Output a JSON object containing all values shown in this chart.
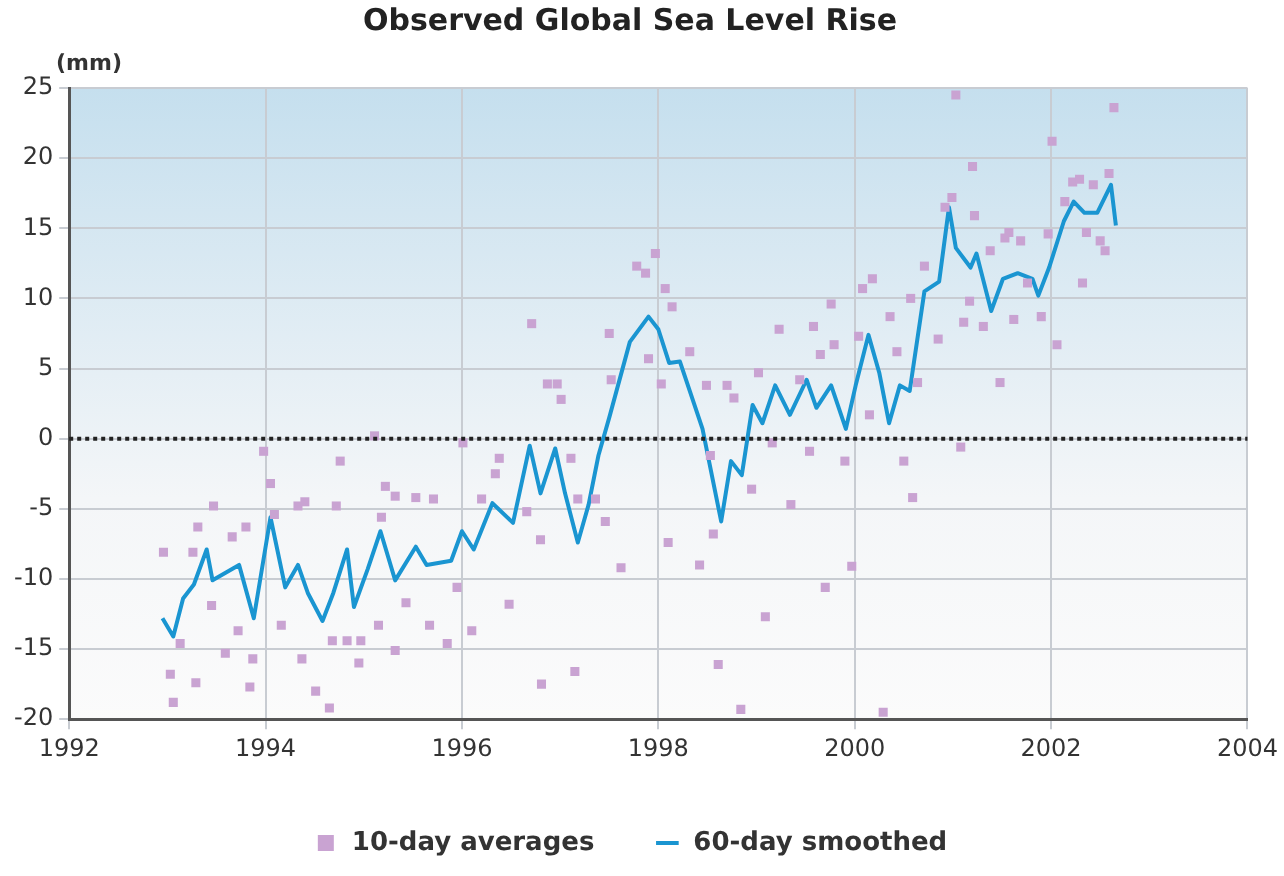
{
  "chart_data": {
    "type": "scatter",
    "title": "Observed Global Sea Level Rise",
    "ylabel": "(mm)",
    "xlim": [
      1992,
      2004
    ],
    "xticks": [
      1992,
      1994,
      1996,
      1998,
      2000,
      2002,
      2004
    ],
    "ylim": [
      -20,
      25
    ],
    "yticks": [
      -20,
      -15,
      -10,
      -5,
      0,
      5,
      10,
      15,
      20,
      25
    ],
    "grid": true,
    "legend": "bottom",
    "ref_lines": [
      {
        "axis": "y",
        "value": 0,
        "color": "#222222",
        "line_style": "dotted"
      }
    ],
    "series": [
      {
        "name": "10-day averages",
        "marker": "square",
        "color": "#c9a3d2",
        "x": [
          1992.96,
          1993.03,
          1993.06,
          1993.13,
          1993.29,
          1993.31,
          1993.26,
          1993.47,
          1993.45,
          1993.59,
          1993.66,
          1993.72,
          1993.8,
          1993.84,
          1993.87,
          1993.98,
          1994.05,
          1994.09,
          1994.16,
          1994.37,
          1994.33,
          1994.4,
          1994.51,
          1994.65,
          1994.76,
          1994.72,
          1994.68,
          1994.83,
          1994.95,
          1994.97,
          1995.11,
          1995.22,
          1995.32,
          1995.18,
          1995.15,
          1995.32,
          1995.43,
          1995.53,
          1995.67,
          1995.71,
          1995.85,
          1995.95,
          1996.01,
          1996.1,
          1996.2,
          1996.34,
          1996.38,
          1996.48,
          1996.66,
          1996.71,
          1996.8,
          1996.81,
          1996.87,
          1996.97,
          1997.01,
          1997.11,
          1997.15,
          1997.18,
          1997.36,
          1997.46,
          1997.5,
          1997.62,
          1997.52,
          1997.78,
          1997.87,
          1997.97,
          1997.9,
          1998.03,
          1998.07,
          1998.14,
          1998.32,
          1998.49,
          1998.53,
          1998.1,
          1998.42,
          1998.56,
          1998.61,
          1998.7,
          1998.77,
          1998.84,
          1998.95,
          1999.02,
          1999.09,
          1999.16,
          1999.23,
          1999.35,
          1999.44,
          1999.54,
          1999.58,
          1999.65,
          1999.7,
          1999.76,
          1999.79,
          1999.9,
          1999.97,
          2000.04,
          2000.08,
          2000.15,
          2000.18,
          2000.29,
          2000.36,
          2000.43,
          2000.5,
          2000.57,
          2000.59,
          2000.64,
          2000.71,
          2000.85,
          2000.92,
          2000.99,
          2001.03,
          2001.08,
          2001.11,
          2001.17,
          2001.2,
          2001.22,
          2001.31,
          2001.38,
          2001.48,
          2001.53,
          2001.57,
          2001.62,
          2001.69,
          2001.76,
          2001.9,
          2001.97,
          2002.01,
          2002.06,
          2002.14,
          2002.22,
          2002.29,
          2002.32,
          2002.36,
          2002.43,
          2002.5,
          2002.55,
          2002.59,
          2002.64
        ],
        "values": [
          -8.1,
          -16.8,
          -18.8,
          -14.6,
          -17.4,
          -6.3,
          -8.1,
          -4.8,
          -11.9,
          -15.3,
          -7,
          -13.7,
          -6.3,
          -17.7,
          -15.7,
          -0.9,
          -3.2,
          -5.4,
          -13.3,
          -15.7,
          -4.8,
          -4.5,
          -18,
          -19.2,
          -1.6,
          -4.8,
          -14.4,
          -14.4,
          -16,
          -14.4,
          0.2,
          -3.4,
          -4.1,
          -5.6,
          -13.3,
          -15.1,
          -11.7,
          -4.2,
          -13.3,
          -4.3,
          -14.6,
          -10.6,
          -0.3,
          -13.7,
          -4.3,
          -2.5,
          -1.4,
          -11.8,
          -5.2,
          8.2,
          -7.2,
          -17.5,
          3.9,
          3.9,
          2.8,
          -1.4,
          -16.6,
          -4.3,
          -4.3,
          -5.9,
          7.5,
          -9.2,
          4.2,
          12.3,
          11.8,
          13.2,
          5.7,
          3.9,
          10.7,
          9.4,
          6.2,
          3.8,
          -1.2,
          -7.4,
          -9,
          -6.8,
          -16.1,
          3.8,
          2.9,
          -19.3,
          -3.6,
          4.7,
          -12.7,
          -0.3,
          7.8,
          -4.7,
          4.2,
          -0.9,
          8,
          6,
          -10.6,
          9.6,
          6.7,
          -1.6,
          -9.1,
          7.3,
          10.7,
          1.7,
          11.4,
          -19.5,
          8.7,
          6.2,
          -1.6,
          10,
          -4.2,
          4,
          12.3,
          7.1,
          16.5,
          17.2,
          24.5,
          -0.6,
          8.3,
          9.8,
          19.4,
          15.9,
          8,
          13.4,
          4,
          14.3,
          14.7,
          8.5,
          14.1,
          11.1,
          8.7,
          14.6,
          21.2,
          6.7,
          16.9,
          18.3,
          18.5,
          11.1,
          14.7,
          18.1,
          14.1,
          13.4,
          18.9,
          23.6
        ]
      },
      {
        "name": "60-day smoothed",
        "type": "line",
        "marker": "none",
        "color": "#1a95d1",
        "x": [
          1992.95,
          1993.06,
          1993.16,
          1993.27,
          1993.4,
          1993.46,
          1993.73,
          1993.88,
          1994.05,
          1994.2,
          1994.33,
          1994.43,
          1994.58,
          1994.69,
          1994.83,
          1994.9,
          1995.04,
          1995.17,
          1995.32,
          1995.53,
          1995.64,
          1995.89,
          1996,
          1996.12,
          1996.31,
          1996.52,
          1996.69,
          1996.8,
          1996.95,
          1997.05,
          1997.18,
          1997.29,
          1997.39,
          1997.5,
          1997.71,
          1997.9,
          1998,
          1998.11,
          1998.22,
          1998.32,
          1998.45,
          1998.64,
          1998.74,
          1998.85,
          1998.96,
          1999.06,
          1999.19,
          1999.34,
          1999.51,
          1999.61,
          1999.76,
          1999.91,
          2000.01,
          2000.14,
          2000.25,
          2000.35,
          2000.46,
          2000.56,
          2000.71,
          2000.86,
          2000.96,
          2001.03,
          2001.18,
          2001.24,
          2001.39,
          2001.51,
          2001.66,
          2001.81,
          2001.87,
          2001.98,
          2002.13,
          2002.23,
          2002.34,
          2002.47,
          2002.61,
          2002.66
        ],
        "values": [
          -12.8,
          -14.1,
          -11.4,
          -10.4,
          -7.9,
          -10.1,
          -9,
          -12.8,
          -5.6,
          -10.6,
          -9,
          -11,
          -13,
          -11,
          -7.9,
          -12,
          -9.3,
          -6.6,
          -10.1,
          -7.7,
          -9,
          -8.7,
          -6.6,
          -7.9,
          -4.6,
          -6,
          -0.5,
          -3.9,
          -0.7,
          -3.9,
          -7.4,
          -4.7,
          -1.2,
          1.5,
          6.9,
          8.7,
          7.8,
          5.4,
          5.5,
          3.4,
          0.7,
          -5.9,
          -1.6,
          -2.6,
          2.4,
          1.1,
          3.8,
          1.7,
          4.2,
          2.2,
          3.8,
          0.7,
          3.8,
          7.4,
          4.7,
          1.1,
          3.8,
          3.4,
          10.5,
          11.2,
          16.5,
          13.6,
          12.2,
          13.2,
          9.1,
          11.4,
          11.8,
          11.4,
          10.2,
          12.2,
          15.5,
          16.9,
          16.1,
          16.1,
          18.1,
          15.2
        ]
      }
    ]
  }
}
